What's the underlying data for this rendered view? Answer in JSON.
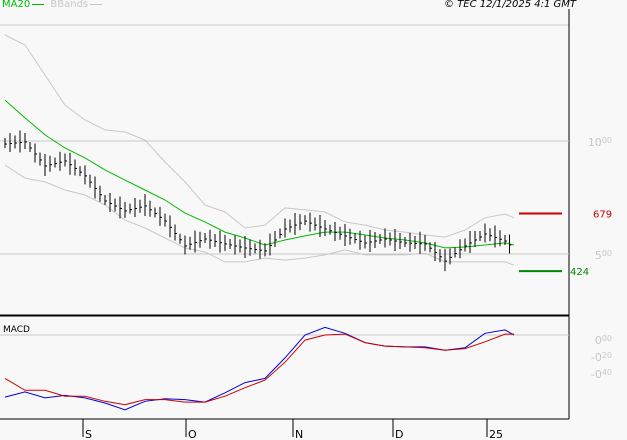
{
  "header": {
    "legend": [
      {
        "label": "MA20",
        "color": "#00bb00"
      },
      {
        "label": "BBands",
        "color": "#c8c8c8"
      }
    ],
    "copyright": "© TEC 12/1/2025 4:1 GMT"
  },
  "chart_data": [
    {
      "type": "line",
      "panel": "price",
      "grid": true,
      "y_ticks": [
        {
          "value": 1000,
          "main": "10",
          "sup": "00"
        },
        {
          "value": 500,
          "main": "5",
          "sup": "00"
        }
      ],
      "x_ticks": [
        "S",
        "O",
        "N",
        "D",
        "25"
      ],
      "close": [
        991,
        1000,
        894,
        916,
        850,
        739,
        695,
        717,
        650,
        540,
        571,
        549,
        531,
        518,
        615,
        650,
        615,
        584,
        553,
        571,
        553,
        549,
        473,
        540,
        593,
        562,
        527
      ],
      "series": [
        {
          "name": "MA20",
          "color": "#00bb00",
          "values": [
            1181,
            1102,
            1027,
            969,
            925,
            872,
            827,
            783,
            739,
            681,
            642,
            597,
            571,
            540,
            562,
            580,
            597,
            597,
            584,
            571,
            562,
            549,
            527,
            531,
            540,
            549,
            540
          ]
        },
        {
          "name": "BBands",
          "color": "#c8c8c8",
          "upper": [
            1469,
            1425,
            1292,
            1159,
            1093,
            1049,
            1040,
            1004,
            907,
            819,
            717,
            686,
            615,
            628,
            704,
            695,
            686,
            642,
            628,
            606,
            597,
            584,
            575,
            606,
            660,
            677,
            660
          ],
          "lower": [
            894,
            836,
            819,
            783,
            761,
            717,
            650,
            615,
            571,
            527,
            509,
            465,
            465,
            482,
            473,
            482,
            496,
            518,
            496,
            496,
            496,
            504,
            465,
            465,
            465,
            465,
            451
          ]
        }
      ],
      "levels": [
        {
          "value": 679,
          "label": "679",
          "color": "#cc0000"
        },
        {
          "value": 424,
          "label": "424",
          "color": "#008800"
        }
      ]
    },
    {
      "type": "line",
      "panel": "macd",
      "title": "MACD",
      "y_ticks": [
        {
          "value": 0,
          "main": "0",
          "sup": "00"
        },
        {
          "value": -0.2,
          "main": "-0",
          "sup": "20"
        },
        {
          "value": -0.4,
          "main": "-0",
          "sup": "40"
        }
      ],
      "series": [
        {
          "color": "#0000dd",
          "values": [
            -0.73,
            -0.67,
            -0.74,
            -0.71,
            -0.74,
            -0.8,
            -0.88,
            -0.78,
            -0.75,
            -0.76,
            -0.79,
            -0.68,
            -0.56,
            -0.51,
            -0.27,
            0.0,
            0.09,
            0.02,
            -0.09,
            -0.13,
            -0.14,
            -0.14,
            -0.18,
            -0.15,
            0.02,
            0.06,
            0.0
          ]
        },
        {
          "color": "#cc0000",
          "values": [
            -0.51,
            -0.65,
            -0.65,
            -0.72,
            -0.72,
            -0.78,
            -0.82,
            -0.76,
            -0.76,
            -0.79,
            -0.79,
            -0.72,
            -0.62,
            -0.53,
            -0.32,
            -0.06,
            0.0,
            0.01,
            -0.09,
            -0.13,
            -0.14,
            -0.15,
            -0.18,
            -0.16,
            -0.08,
            0.01,
            0.01
          ]
        }
      ]
    }
  ]
}
